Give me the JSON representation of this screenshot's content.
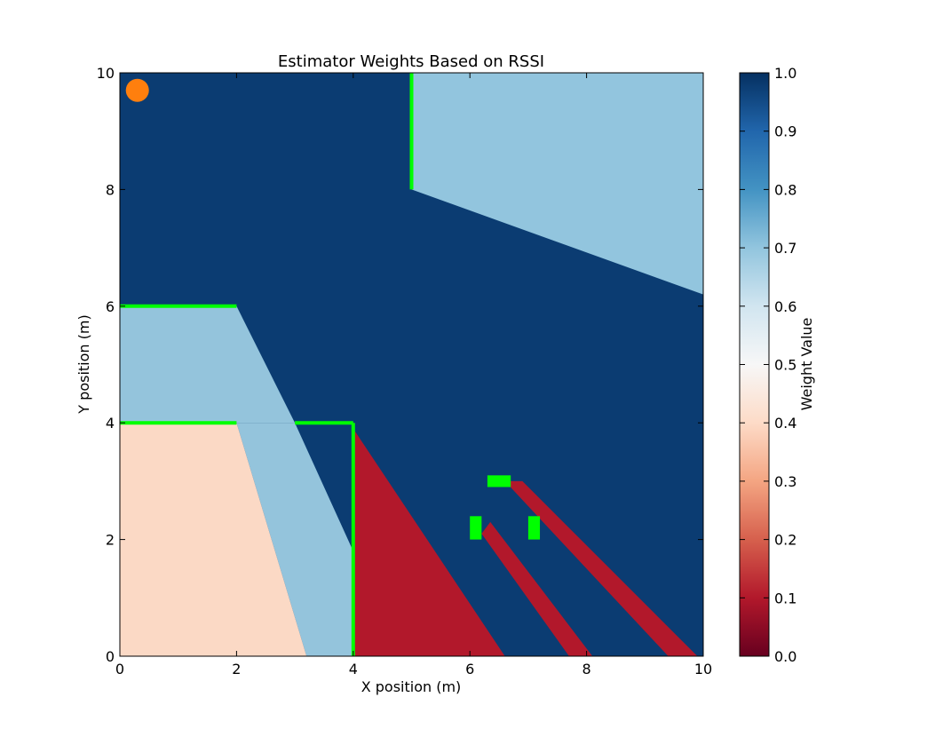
{
  "chart_data": {
    "type": "heatmap",
    "title": "Estimator Weights Based on RSSI",
    "xlabel": "X position (m)",
    "ylabel": "Y position (m)",
    "xlim": [
      0,
      10
    ],
    "ylim": [
      0,
      10
    ],
    "xticks": [
      "0",
      "2",
      "4",
      "6",
      "8",
      "10"
    ],
    "yticks": [
      "0",
      "2",
      "4",
      "6",
      "8",
      "10"
    ],
    "colorbar": {
      "label": "Weight Value",
      "range": [
        0.0,
        1.0
      ],
      "ticks": [
        "0.0",
        "0.1",
        "0.2",
        "0.3",
        "0.4",
        "0.5",
        "0.6",
        "0.7",
        "0.8",
        "0.9",
        "1.0"
      ],
      "colormap": [
        "#67001f",
        "#b2182b",
        "#d6604d",
        "#f4a582",
        "#fddbc7",
        "#f7f7f7",
        "#d1e5f0",
        "#92c5de",
        "#4393c3",
        "#2166ac",
        "#053061"
      ]
    },
    "regions": [
      {
        "weight": 0.96,
        "color": "#0b3c72",
        "polygon": [
          [
            0,
            0
          ],
          [
            10,
            0
          ],
          [
            10,
            10
          ],
          [
            0,
            10
          ]
        ]
      },
      {
        "weight": 0.68,
        "color": "#92c5de",
        "polygon": [
          [
            5,
            10
          ],
          [
            10,
            10
          ],
          [
            10,
            6.2
          ],
          [
            5,
            8
          ]
        ]
      },
      {
        "weight": 0.67,
        "color": "#94c4dc",
        "polygon": [
          [
            0,
            6
          ],
          [
            2,
            6
          ],
          [
            3,
            4
          ],
          [
            0,
            4
          ]
        ]
      },
      {
        "weight": 0.67,
        "color": "#94c4dc",
        "polygon": [
          [
            2,
            4
          ],
          [
            3,
            4
          ],
          [
            4,
            1.8
          ],
          [
            4,
            0
          ],
          [
            3.2,
            0
          ]
        ]
      },
      {
        "weight": 0.38,
        "color": "#fbd9c5",
        "polygon": [
          [
            0,
            4
          ],
          [
            2,
            4
          ],
          [
            3.2,
            0
          ],
          [
            0,
            0
          ]
        ]
      },
      {
        "weight": 0.08,
        "color": "#b2182b",
        "polygon": [
          [
            4,
            3.9
          ],
          [
            6.6,
            0
          ],
          [
            4,
            0
          ]
        ]
      },
      {
        "weight": 0.08,
        "color": "#b2182b",
        "polygon": [
          [
            6.2,
            2.1
          ],
          [
            6.35,
            2.3
          ],
          [
            8.1,
            0
          ],
          [
            7.7,
            0
          ]
        ]
      },
      {
        "weight": 0.08,
        "color": "#b2182b",
        "polygon": [
          [
            6.6,
            3.0
          ],
          [
            6.9,
            3.0
          ],
          [
            9.9,
            0
          ],
          [
            9.4,
            0
          ]
        ]
      }
    ],
    "walls": [
      {
        "color": "#00ff00",
        "points": [
          [
            0,
            6
          ],
          [
            2,
            6
          ]
        ]
      },
      {
        "color": "#00ff00",
        "points": [
          [
            0,
            4
          ],
          [
            2,
            4
          ]
        ]
      },
      {
        "color": "#00ff00",
        "points": [
          [
            3,
            4
          ],
          [
            4,
            4
          ]
        ]
      },
      {
        "color": "#00ff00",
        "points": [
          [
            4,
            4
          ],
          [
            4,
            0
          ]
        ]
      },
      {
        "color": "#00ff00",
        "points": [
          [
            5,
            8
          ],
          [
            5,
            10
          ]
        ]
      }
    ],
    "obstacles": [
      {
        "color": "#00ff00",
        "x": [
          6.3,
          6.7
        ],
        "y": [
          2.9,
          3.1
        ]
      },
      {
        "color": "#00ff00",
        "x": [
          6.0,
          6.2
        ],
        "y": [
          2.0,
          2.4
        ]
      },
      {
        "color": "#00ff00",
        "x": [
          7.0,
          7.2
        ],
        "y": [
          2.0,
          2.4
        ]
      }
    ],
    "marker": {
      "color": "#ff7f0e",
      "x": 0.3,
      "y": 9.7
    }
  }
}
